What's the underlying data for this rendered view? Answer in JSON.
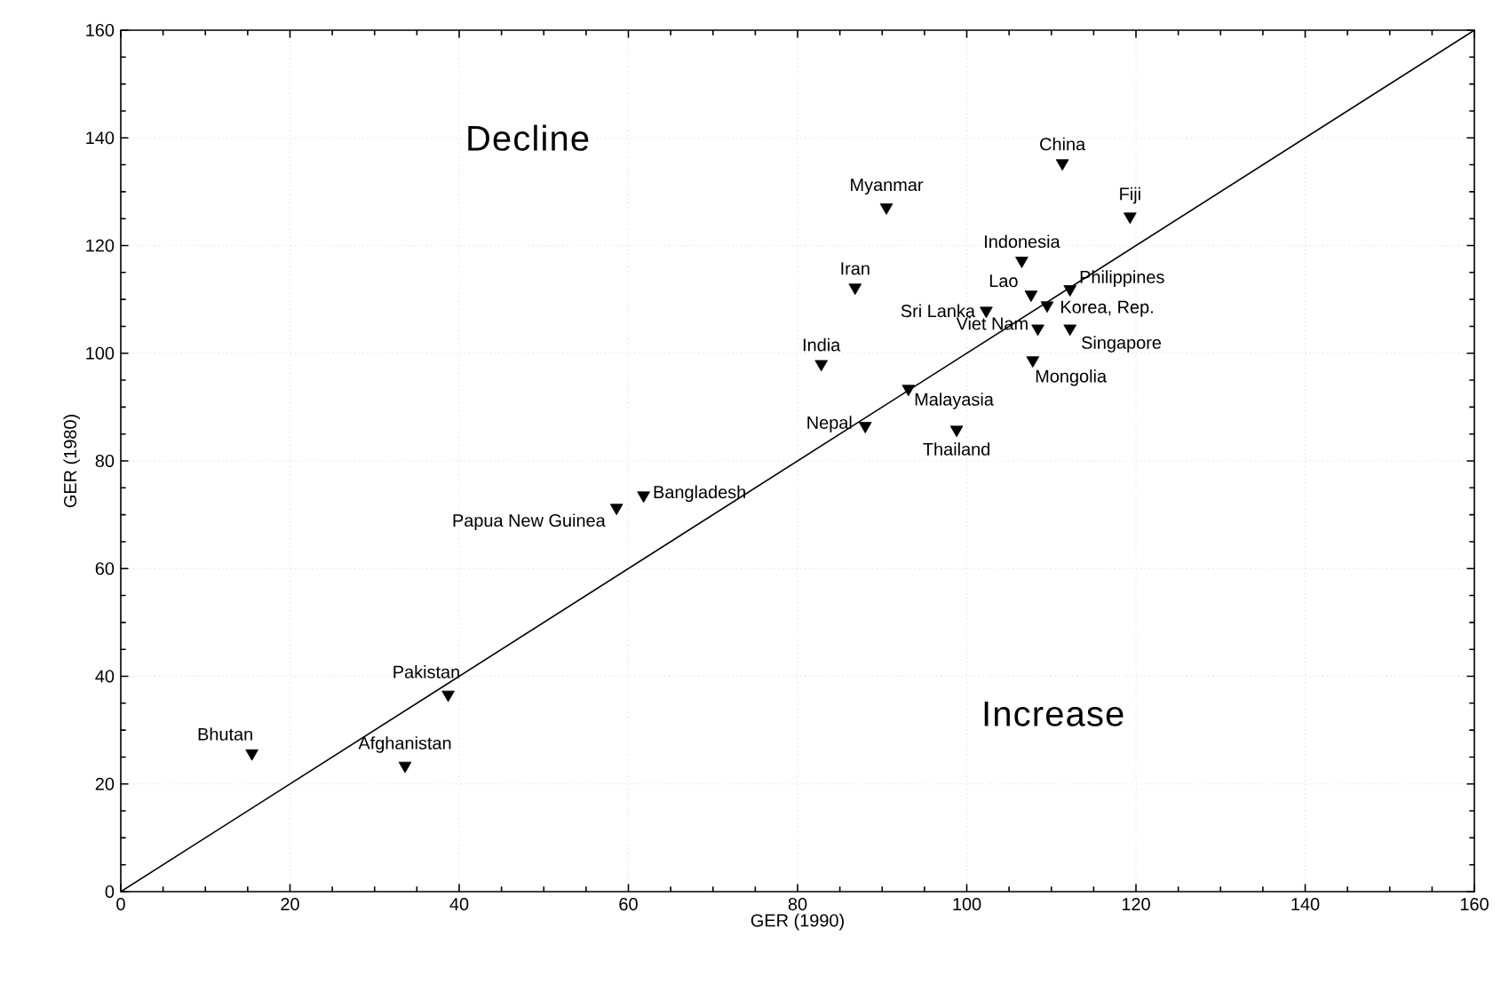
{
  "chart_data": {
    "type": "scatter",
    "xlabel": "GER (1990)",
    "ylabel": "GER (1980)",
    "xlim": [
      0,
      160
    ],
    "ylim": [
      0,
      160
    ],
    "xticks": [
      0,
      20,
      40,
      60,
      80,
      100,
      120,
      140,
      160
    ],
    "yticks": [
      0,
      20,
      40,
      60,
      80,
      100,
      120,
      140,
      160
    ],
    "grid": true,
    "marker": "triangle",
    "series": [
      {
        "color": "#000000",
        "x": [
          15.5,
          33.6,
          38.7,
          58.6,
          61.8,
          111.3,
          90.5,
          119.3,
          106.5,
          86.8,
          112.2,
          107.6,
          109.5,
          102.3,
          112.2,
          108.4,
          82.8,
          107.8,
          93.1,
          88.0,
          98.8
        ],
        "values": [
          25.7,
          23.4,
          36.6,
          71.3,
          73.6,
          135.3,
          127.1,
          125.4,
          117.2,
          112.2,
          111.9,
          110.9,
          108.9,
          107.9,
          104.6,
          104.6,
          98.0,
          98.7,
          93.4,
          86.5,
          85.8
        ]
      },
      {
        "type": "line",
        "color": "#000000",
        "marker": "none",
        "x": [
          0,
          160
        ],
        "values": [
          0,
          160
        ]
      }
    ],
    "annotations": [
      {
        "text": "Bhutan",
        "x": 15.5,
        "y": 25.7
      },
      {
        "text": "Afghanistan",
        "x": 33.6,
        "y": 23.4
      },
      {
        "text": "Pakistan",
        "x": 38.7,
        "y": 36.6
      },
      {
        "text": "Papua New Guinea",
        "x": 58.6,
        "y": 71.3
      },
      {
        "text": "Bangladesh",
        "x": 61.8,
        "y": 73.6
      },
      {
        "text": "China",
        "x": 111.3,
        "y": 135.3
      },
      {
        "text": "Myanmar",
        "x": 90.5,
        "y": 127.1
      },
      {
        "text": "Fiji",
        "x": 119.3,
        "y": 125.4
      },
      {
        "text": "Indonesia",
        "x": 106.5,
        "y": 117.2
      },
      {
        "text": "Iran",
        "x": 86.8,
        "y": 112.2
      },
      {
        "text": "Philippines",
        "x": 112.2,
        "y": 111.9
      },
      {
        "text": "Lao",
        "x": 107.6,
        "y": 110.9
      },
      {
        "text": "Korea, Rep.",
        "x": 109.5,
        "y": 108.9
      },
      {
        "text": "Sri Lanka",
        "x": 102.3,
        "y": 107.9
      },
      {
        "text": "Singapore",
        "x": 112.2,
        "y": 104.6
      },
      {
        "text": "Viet Nam",
        "x": 108.4,
        "y": 104.6
      },
      {
        "text": "India",
        "x": 82.8,
        "y": 98.0
      },
      {
        "text": "Mongolia",
        "x": 107.8,
        "y": 98.7
      },
      {
        "text": "Malayasia",
        "x": 93.1,
        "y": 93.4
      },
      {
        "text": "Nepal",
        "x": 88.0,
        "y": 86.5
      },
      {
        "text": "Thailand",
        "x": 98.8,
        "y": 85.8
      },
      "Decline",
      "Increase"
    ]
  }
}
